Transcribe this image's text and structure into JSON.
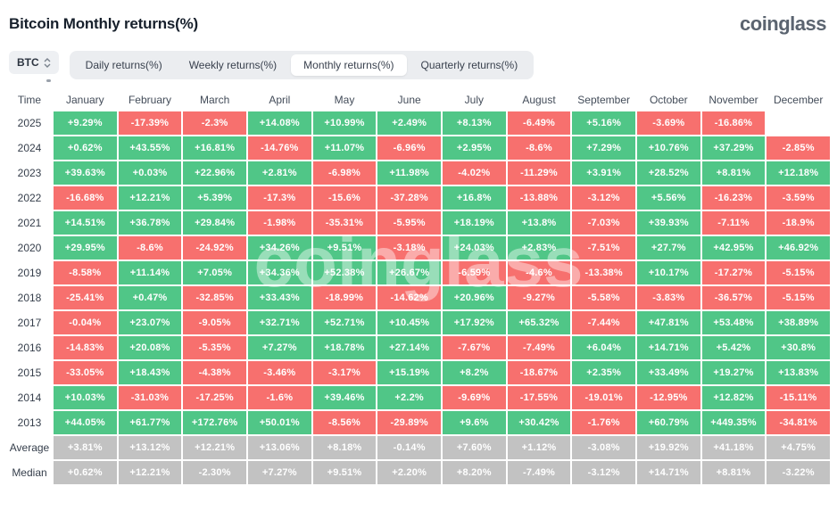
{
  "header": {
    "title": "Bitcoin Monthly returns(%)",
    "logo": "coinglass"
  },
  "controls": {
    "symbol": "BTC",
    "sort_icon": "up-down-chevrons",
    "tabs": [
      {
        "label": "Daily returns(%)",
        "selected": false
      },
      {
        "label": "Weekly returns(%)",
        "selected": false
      },
      {
        "label": "Monthly returns(%)",
        "selected": true
      },
      {
        "label": "Quarterly returns(%)",
        "selected": false
      }
    ]
  },
  "colors": {
    "positive": "#50c687",
    "negative": "#f7706e",
    "neutral": "#c2c2c2"
  },
  "watermark": "coinglass",
  "chart_data": {
    "type": "heatmap",
    "title": "Bitcoin Monthly returns(%)",
    "time_label": "Time",
    "months": [
      "January",
      "February",
      "March",
      "April",
      "May",
      "June",
      "July",
      "August",
      "September",
      "October",
      "November",
      "December"
    ],
    "rows": [
      {
        "label": "2025",
        "type": "year",
        "values": [
          "+9.29%",
          "-17.39%",
          "-2.3%",
          "+14.08%",
          "+10.99%",
          "+2.49%",
          "+8.13%",
          "-6.49%",
          "+5.16%",
          "-3.69%",
          "-16.86%",
          null
        ]
      },
      {
        "label": "2024",
        "type": "year",
        "values": [
          "+0.62%",
          "+43.55%",
          "+16.81%",
          "-14.76%",
          "+11.07%",
          "-6.96%",
          "+2.95%",
          "-8.6%",
          "+7.29%",
          "+10.76%",
          "+37.29%",
          "-2.85%"
        ]
      },
      {
        "label": "2023",
        "type": "year",
        "values": [
          "+39.63%",
          "+0.03%",
          "+22.96%",
          "+2.81%",
          "-6.98%",
          "+11.98%",
          "-4.02%",
          "-11.29%",
          "+3.91%",
          "+28.52%",
          "+8.81%",
          "+12.18%"
        ]
      },
      {
        "label": "2022",
        "type": "year",
        "values": [
          "-16.68%",
          "+12.21%",
          "+5.39%",
          "-17.3%",
          "-15.6%",
          "-37.28%",
          "+16.8%",
          "-13.88%",
          "-3.12%",
          "+5.56%",
          "-16.23%",
          "-3.59%"
        ]
      },
      {
        "label": "2021",
        "type": "year",
        "values": [
          "+14.51%",
          "+36.78%",
          "+29.84%",
          "-1.98%",
          "-35.31%",
          "-5.95%",
          "+18.19%",
          "+13.8%",
          "-7.03%",
          "+39.93%",
          "-7.11%",
          "-18.9%"
        ]
      },
      {
        "label": "2020",
        "type": "year",
        "values": [
          "+29.95%",
          "-8.6%",
          "-24.92%",
          "+34.26%",
          "+9.51%",
          "-3.18%",
          "+24.03%",
          "+2.83%",
          "-7.51%",
          "+27.7%",
          "+42.95%",
          "+46.92%"
        ]
      },
      {
        "label": "2019",
        "type": "year",
        "values": [
          "-8.58%",
          "+11.14%",
          "+7.05%",
          "+34.36%",
          "+52.38%",
          "+26.67%",
          "-6.59%",
          "-4.6%",
          "-13.38%",
          "+10.17%",
          "-17.27%",
          "-5.15%"
        ]
      },
      {
        "label": "2018",
        "type": "year",
        "values": [
          "-25.41%",
          "+0.47%",
          "-32.85%",
          "+33.43%",
          "-18.99%",
          "-14.62%",
          "+20.96%",
          "-9.27%",
          "-5.58%",
          "-3.83%",
          "-36.57%",
          "-5.15%"
        ]
      },
      {
        "label": "2017",
        "type": "year",
        "values": [
          "-0.04%",
          "+23.07%",
          "-9.05%",
          "+32.71%",
          "+52.71%",
          "+10.45%",
          "+17.92%",
          "+65.32%",
          "-7.44%",
          "+47.81%",
          "+53.48%",
          "+38.89%"
        ]
      },
      {
        "label": "2016",
        "type": "year",
        "values": [
          "-14.83%",
          "+20.08%",
          "-5.35%",
          "+7.27%",
          "+18.78%",
          "+27.14%",
          "-7.67%",
          "-7.49%",
          "+6.04%",
          "+14.71%",
          "+5.42%",
          "+30.8%"
        ]
      },
      {
        "label": "2015",
        "type": "year",
        "values": [
          "-33.05%",
          "+18.43%",
          "-4.38%",
          "-3.46%",
          "-3.17%",
          "+15.19%",
          "+8.2%",
          "-18.67%",
          "+2.35%",
          "+33.49%",
          "+19.27%",
          "+13.83%"
        ]
      },
      {
        "label": "2014",
        "type": "year",
        "values": [
          "+10.03%",
          "-31.03%",
          "-17.25%",
          "-1.6%",
          "+39.46%",
          "+2.2%",
          "-9.69%",
          "-17.55%",
          "-19.01%",
          "-12.95%",
          "+12.82%",
          "-15.11%"
        ]
      },
      {
        "label": "2013",
        "type": "year",
        "values": [
          "+44.05%",
          "+61.77%",
          "+172.76%",
          "+50.01%",
          "-8.56%",
          "-29.89%",
          "+9.6%",
          "+30.42%",
          "-1.76%",
          "+60.79%",
          "+449.35%",
          "-34.81%"
        ]
      },
      {
        "label": "Average",
        "type": "summary",
        "values": [
          "+3.81%",
          "+13.12%",
          "+12.21%",
          "+13.06%",
          "+8.18%",
          "-0.14%",
          "+7.60%",
          "+1.12%",
          "-3.08%",
          "+19.92%",
          "+41.18%",
          "+4.75%"
        ]
      },
      {
        "label": "Median",
        "type": "summary",
        "values": [
          "+0.62%",
          "+12.21%",
          "-2.30%",
          "+7.27%",
          "+9.51%",
          "+2.20%",
          "+8.20%",
          "-7.49%",
          "-3.12%",
          "+14.71%",
          "+8.81%",
          "-3.22%"
        ]
      }
    ]
  }
}
